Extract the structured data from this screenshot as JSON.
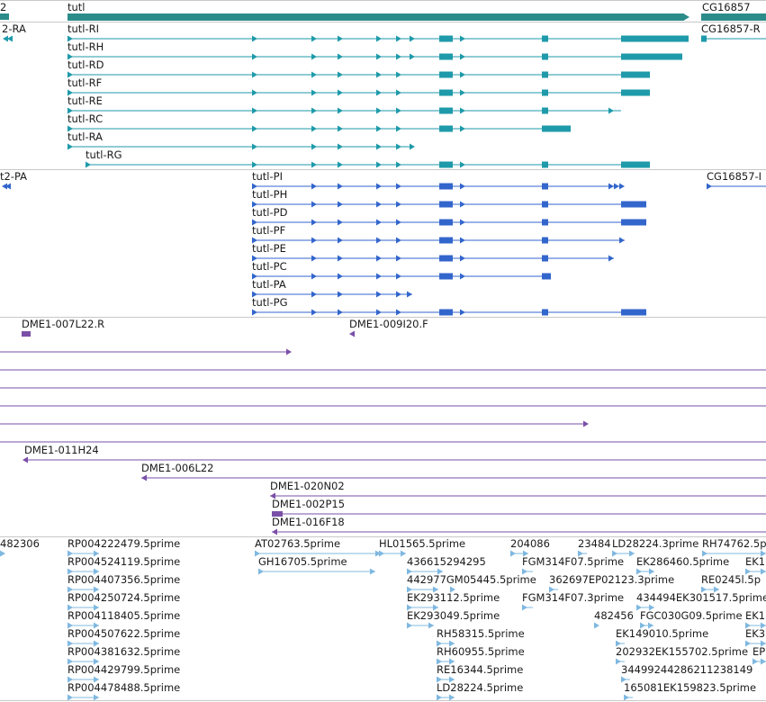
{
  "colors": {
    "teal": "#1e9aaa",
    "teal_top": "#2c8c8a",
    "blue": "#3366cc",
    "purple": "#7a4fa8",
    "est": "#7fb8e0",
    "separator": "#c8c8c8"
  },
  "tracks": {
    "gene": {
      "items": [
        {
          "label": "2",
          "x": "left-edge"
        },
        {
          "label": "tutl"
        },
        {
          "label": "CG16857"
        }
      ]
    },
    "transcripts": {
      "items": [
        {
          "label": "2-RA"
        },
        {
          "label": "tutl-RI"
        },
        {
          "label": "CG16857-R"
        },
        {
          "label": "tutl-RH"
        },
        {
          "label": "tutl-RD"
        },
        {
          "label": "tutl-RF"
        },
        {
          "label": "tutl-RE"
        },
        {
          "label": "tutl-RC"
        },
        {
          "label": "tutl-RA"
        },
        {
          "label": "tutl-RG"
        }
      ]
    },
    "proteins": {
      "items": [
        {
          "label": "t2-PA"
        },
        {
          "label": "tutl-PI"
        },
        {
          "label": "CG16857-I"
        },
        {
          "label": "tutl-PH"
        },
        {
          "label": "tutl-PD"
        },
        {
          "label": "tutl-PF"
        },
        {
          "label": "tutl-PE"
        },
        {
          "label": "tutl-PC"
        },
        {
          "label": "tutl-PA"
        },
        {
          "label": "tutl-PG"
        }
      ]
    },
    "clones": {
      "items": [
        {
          "label": "DME1-007L22.R"
        },
        {
          "label": "DME1-009I20.F"
        },
        {
          "label": "DME1-011H24"
        },
        {
          "label": "DME1-006L22"
        },
        {
          "label": "DME1-020N02"
        },
        {
          "label": "DME1-002P15"
        },
        {
          "label": "DME1-016F18"
        }
      ]
    },
    "ests": {
      "items": [
        {
          "label": "482306"
        },
        {
          "label": "RP004222479.5prime"
        },
        {
          "label": "AT02763.5prime"
        },
        {
          "label": "HL01565.5prime"
        },
        {
          "label": "204086"
        },
        {
          "label": "23484"
        },
        {
          "label": "LD28224.3prime"
        },
        {
          "label": "RH74762.5p"
        },
        {
          "label": "RP004524119.5prime"
        },
        {
          "label": "GH16705.5prime"
        },
        {
          "label": "436615294295"
        },
        {
          "label": "FGM314F07.5prime"
        },
        {
          "label": "EK286460.5prime"
        },
        {
          "label": "EK1"
        },
        {
          "label": "RP004407356.5prime"
        },
        {
          "label": "442977GM05445.5prime"
        },
        {
          "label": "362697EP02123.3prime"
        },
        {
          "label": "RE0245l.5p"
        },
        {
          "label": "RP004250724.5prime"
        },
        {
          "label": "EK293112.5prime"
        },
        {
          "label": "FGM314F07.3prime"
        },
        {
          "label": "434494EK301517.5prime"
        },
        {
          "label": "RP004118405.5prime"
        },
        {
          "label": "EK293049.5prime"
        },
        {
          "label": "482456"
        },
        {
          "label": "FGC030G09.5prime"
        },
        {
          "label": "EK1"
        },
        {
          "label": "RP004507622.5prime"
        },
        {
          "label": "RH58315.5prime"
        },
        {
          "label": "EK149010.5prime"
        },
        {
          "label": "EK3"
        },
        {
          "label": "RP004381632.5prime"
        },
        {
          "label": "RH60955.5prime"
        },
        {
          "label": "202932EK155702.5prime"
        },
        {
          "label": "EP"
        },
        {
          "label": "RP004429799.5prime"
        },
        {
          "label": "RE16344.5prime"
        },
        {
          "label": "34499244286211238149"
        },
        {
          "label": "RP004478488.5prime"
        },
        {
          "label": "LD28224.5prime"
        },
        {
          "label": "165081EK159823.5prime"
        }
      ]
    }
  }
}
